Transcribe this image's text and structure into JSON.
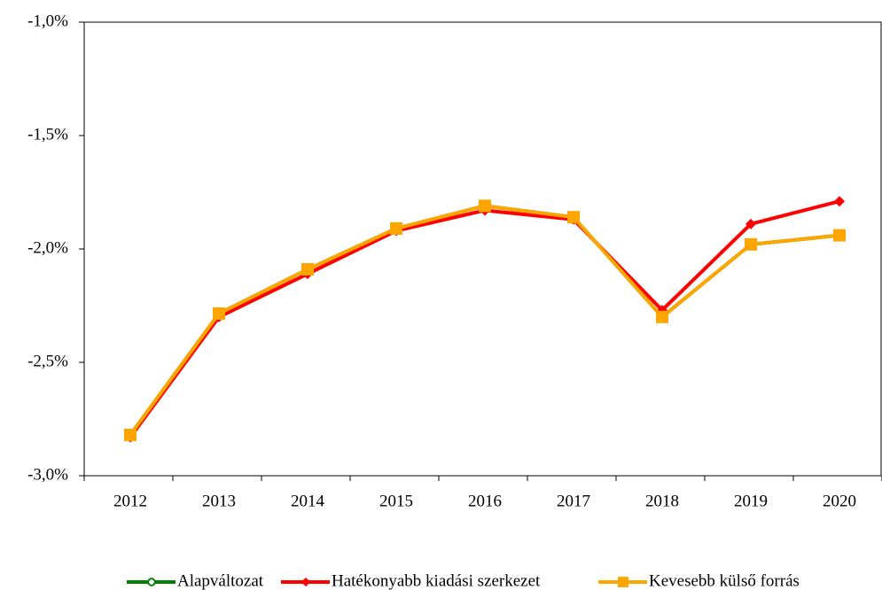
{
  "chart_data": {
    "type": "line",
    "categories": [
      "2012",
      "2013",
      "2014",
      "2015",
      "2016",
      "2017",
      "2018",
      "2019",
      "2020"
    ],
    "series": [
      {
        "name": "Alapváltozat",
        "color": "#008000",
        "marker": "circle",
        "values": [
          -2.82,
          -2.285,
          -2.09,
          -1.91,
          -1.81,
          -1.86,
          -2.3,
          -1.98,
          -1.94
        ]
      },
      {
        "name": "Hatékonyabb kiadási szerkezet",
        "color": "#ff0000",
        "marker": "diamond",
        "values": [
          -2.83,
          -2.3,
          -2.11,
          -1.92,
          -1.83,
          -1.87,
          -2.27,
          -1.89,
          -1.79
        ]
      },
      {
        "name": "Kevesebb külső forrás",
        "color": "#ffa500",
        "marker": "square",
        "values": [
          -2.82,
          -2.285,
          -2.09,
          -1.91,
          -1.81,
          -1.86,
          -2.3,
          -1.98,
          -1.94
        ]
      }
    ],
    "ylim": [
      -3.0,
      -1.0
    ],
    "yticks": [
      {
        "value": -3.0,
        "label": "-3,0%"
      },
      {
        "value": -2.5,
        "label": "-2,5%"
      },
      {
        "value": -2.0,
        "label": "-2,0%"
      },
      {
        "value": -1.5,
        "label": "-1,5%"
      },
      {
        "value": -1.0,
        "label": "-1,0%"
      }
    ],
    "legend": "bottom"
  }
}
